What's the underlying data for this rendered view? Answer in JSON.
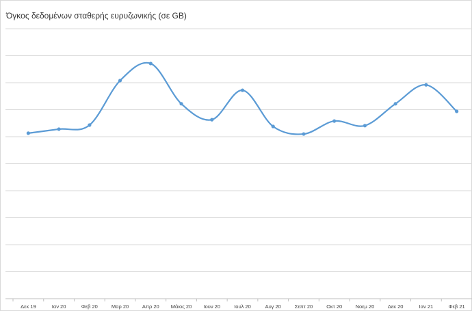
{
  "chart_data": {
    "type": "line",
    "title": "Όγκος δεδομένων σταθερής ευρυζωνικής (σε GB)",
    "categories": [
      "Δεκ 19",
      "Ιαν 20",
      "Φεβ 20",
      "Μαρ 20",
      "Απρ 20",
      "Μάιος 20",
      "Ιουν 20",
      "Ιουλ 20",
      "Αυγ 20",
      "Σεπτ 20",
      "Οκτ 20",
      "Νοεμ 20",
      "Δεκ 20",
      "Ιαν 21",
      "Φεβ 21"
    ],
    "series": [
      {
        "name": "Όγκος",
        "color": "#5b9bd5",
        "values": [
          6.13,
          6.28,
          6.43,
          8.08,
          8.71,
          7.22,
          6.63,
          7.72,
          6.38,
          6.1,
          6.58,
          6.41,
          7.22,
          7.92,
          6.94
        ]
      }
    ],
    "ylim": [
      0,
      10
    ],
    "yticks": [
      0,
      1,
      2,
      3,
      4,
      5,
      6,
      7,
      8,
      9,
      10
    ],
    "grid": true,
    "smooth": true
  }
}
